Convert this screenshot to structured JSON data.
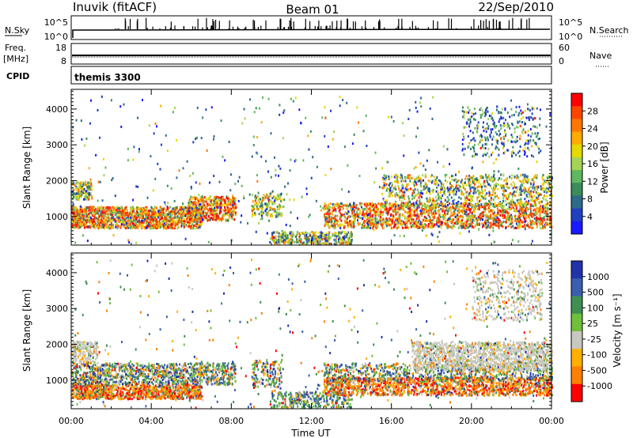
{
  "header": {
    "title": "Inuvik (fitACF)",
    "beam": "Beam 01",
    "date": "22/Sep/2010"
  },
  "summary": {
    "nsky_label": "N.Sky",
    "nsky_ticks": [
      "10^5",
      "10^0"
    ],
    "nsearch_label": "N.Search",
    "nsearch_ticks": [
      "10^5",
      "10^0"
    ],
    "freq_label_1": "Freq.",
    "freq_label_2": "[MHz]",
    "freq_ticks": [
      "18",
      "8"
    ],
    "nave_label": "Nave",
    "nave_ticks": [
      "60",
      "0"
    ],
    "cpid_label": "CPID",
    "cpid_value": "themis 3300"
  },
  "chart_data": [
    {
      "type": "heatmap",
      "title": "",
      "ylabel": "Slant Range [km]",
      "xlabel": "",
      "y_ticks": [
        1000,
        2000,
        3000,
        4000
      ],
      "ylim": [
        200,
        4550
      ],
      "xlim_hours": [
        0,
        24
      ],
      "colorbar_label": "Power [dB]",
      "colorbar_ticks": [
        "28",
        "24",
        "20",
        "16",
        "12",
        "8",
        "4"
      ],
      "colors": [
        "#ff0000",
        "#ff4400",
        "#ff7700",
        "#ffaa00",
        "#e6d800",
        "#a4d455",
        "#5fb85f",
        "#3a8c5a",
        "#2e6a8a",
        "#1f3fbf",
        "#1a1aff"
      ]
    },
    {
      "type": "heatmap",
      "title": "",
      "ylabel": "Slant Range [km]",
      "xlabel": "Time UT",
      "x_ticks": [
        "00:00",
        "04:00",
        "08:00",
        "12:00",
        "16:00",
        "20:00",
        "00:00"
      ],
      "y_ticks": [
        1000,
        2000,
        3000,
        4000
      ],
      "ylim": [
        200,
        4550
      ],
      "xlim_hours": [
        0,
        24
      ],
      "colorbar_label": "Velocity [m s⁻¹]",
      "colorbar_ticks": [
        "1000",
        "500",
        "100",
        "25",
        "-25",
        "-100",
        "-500",
        "-1000"
      ],
      "colors": [
        "#2233aa",
        "#3a5fb0",
        "#3f8f52",
        "#6fbf3a",
        "#c8c8c0",
        "#ffb000",
        "#ff7f00",
        "#ff0000"
      ]
    }
  ]
}
